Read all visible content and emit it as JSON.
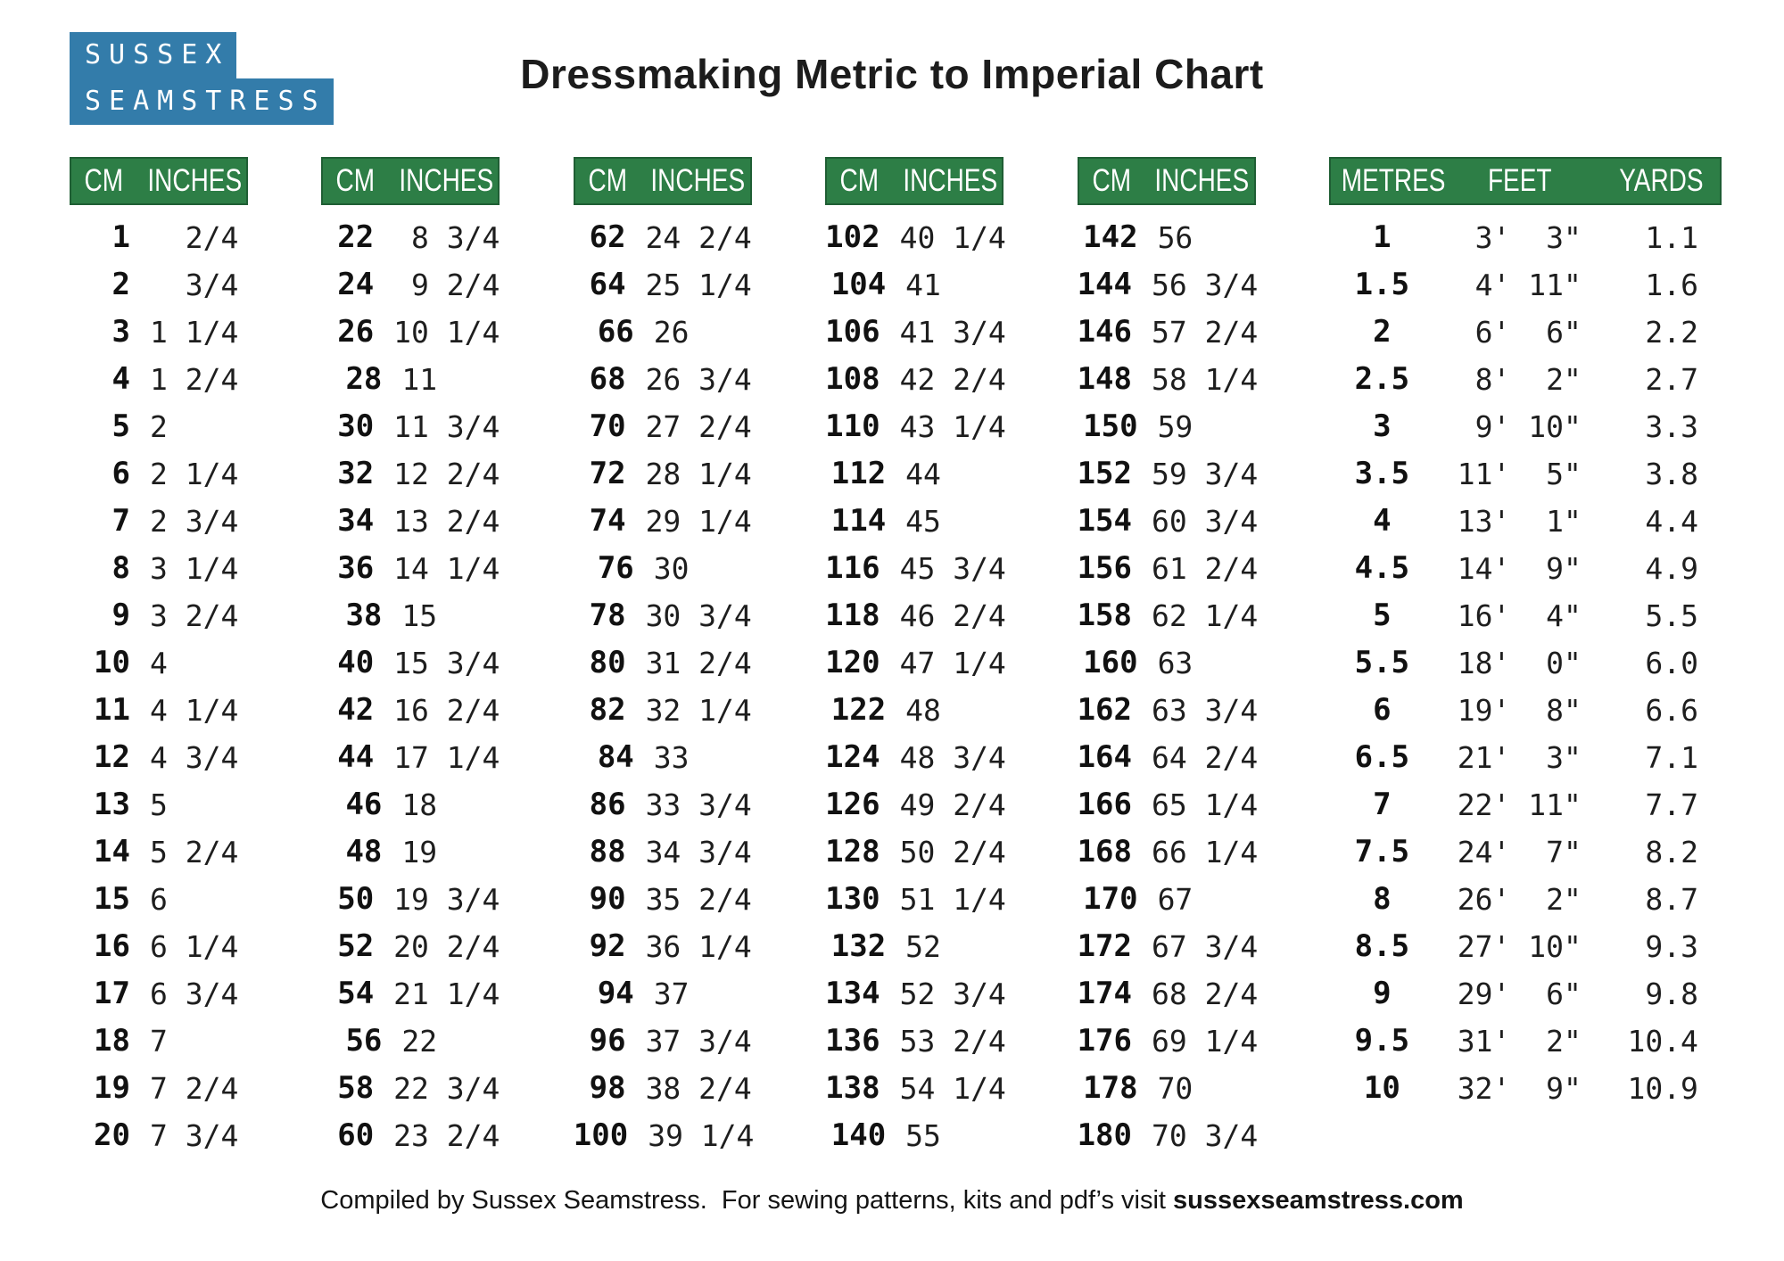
{
  "title": "Dressmaking Metric to Imperial Chart",
  "logo": {
    "line1": "SUSSEX",
    "line2": "SEAMSTRESS"
  },
  "colors": {
    "header_green": "#2d7e46",
    "header_green_border": "#1f5e34",
    "logo_blue": "#337caa"
  },
  "cm_header": {
    "cm": "CM",
    "inches": "INCHES"
  },
  "metres_header": {
    "metres": "METRES",
    "feet": "FEET",
    "yards": "YARDS"
  },
  "cm_tables": [
    {
      "rows": [
        [
          "1",
          "  2/4"
        ],
        [
          "2",
          "  3/4"
        ],
        [
          "3",
          "1 1/4"
        ],
        [
          "4",
          "1 2/4"
        ],
        [
          "5",
          "2"
        ],
        [
          "6",
          "2 1/4"
        ],
        [
          "7",
          "2 3/4"
        ],
        [
          "8",
          "3 1/4"
        ],
        [
          "9",
          "3 2/4"
        ],
        [
          "10",
          "4"
        ],
        [
          "11",
          "4 1/4"
        ],
        [
          "12",
          "4 3/4"
        ],
        [
          "13",
          "5"
        ],
        [
          "14",
          "5 2/4"
        ],
        [
          "15",
          "6"
        ],
        [
          "16",
          "6 1/4"
        ],
        [
          "17",
          "6 3/4"
        ],
        [
          "18",
          "7"
        ],
        [
          "19",
          "7 2/4"
        ],
        [
          "20",
          "7 3/4"
        ]
      ]
    },
    {
      "rows": [
        [
          "22",
          " 8 3/4"
        ],
        [
          "24",
          " 9 2/4"
        ],
        [
          "26",
          "10 1/4"
        ],
        [
          "28",
          "11"
        ],
        [
          "30",
          "11 3/4"
        ],
        [
          "32",
          "12 2/4"
        ],
        [
          "34",
          "13 2/4"
        ],
        [
          "36",
          "14 1/4"
        ],
        [
          "38",
          "15"
        ],
        [
          "40",
          "15 3/4"
        ],
        [
          "42",
          "16 2/4"
        ],
        [
          "44",
          "17 1/4"
        ],
        [
          "46",
          "18"
        ],
        [
          "48",
          "19"
        ],
        [
          "50",
          "19 3/4"
        ],
        [
          "52",
          "20 2/4"
        ],
        [
          "54",
          "21 1/4"
        ],
        [
          "56",
          "22"
        ],
        [
          "58",
          "22 3/4"
        ],
        [
          "60",
          "23 2/4"
        ]
      ]
    },
    {
      "rows": [
        [
          "62",
          "24 2/4"
        ],
        [
          "64",
          "25 1/4"
        ],
        [
          "66",
          "26"
        ],
        [
          "68",
          "26 3/4"
        ],
        [
          "70",
          "27 2/4"
        ],
        [
          "72",
          "28 1/4"
        ],
        [
          "74",
          "29 1/4"
        ],
        [
          "76",
          "30"
        ],
        [
          "78",
          "30 3/4"
        ],
        [
          "80",
          "31 2/4"
        ],
        [
          "82",
          "32 1/4"
        ],
        [
          "84",
          "33"
        ],
        [
          "86",
          "33 3/4"
        ],
        [
          "88",
          "34 3/4"
        ],
        [
          "90",
          "35 2/4"
        ],
        [
          "92",
          "36 1/4"
        ],
        [
          "94",
          "37"
        ],
        [
          "96",
          "37 3/4"
        ],
        [
          "98",
          "38 2/4"
        ],
        [
          "100",
          "39 1/4"
        ]
      ]
    },
    {
      "rows": [
        [
          "102",
          "40 1/4"
        ],
        [
          "104",
          "41"
        ],
        [
          "106",
          "41 3/4"
        ],
        [
          "108",
          "42 2/4"
        ],
        [
          "110",
          "43 1/4"
        ],
        [
          "112",
          "44"
        ],
        [
          "114",
          "45"
        ],
        [
          "116",
          "45 3/4"
        ],
        [
          "118",
          "46 2/4"
        ],
        [
          "120",
          "47 1/4"
        ],
        [
          "122",
          "48"
        ],
        [
          "124",
          "48 3/4"
        ],
        [
          "126",
          "49 2/4"
        ],
        [
          "128",
          "50 2/4"
        ],
        [
          "130",
          "51 1/4"
        ],
        [
          "132",
          "52"
        ],
        [
          "134",
          "52 3/4"
        ],
        [
          "136",
          "53 2/4"
        ],
        [
          "138",
          "54 1/4"
        ],
        [
          "140",
          "55"
        ]
      ]
    },
    {
      "rows": [
        [
          "142",
          "56"
        ],
        [
          "144",
          "56 3/4"
        ],
        [
          "146",
          "57 2/4"
        ],
        [
          "148",
          "58 1/4"
        ],
        [
          "150",
          "59"
        ],
        [
          "152",
          "59 3/4"
        ],
        [
          "154",
          "60 3/4"
        ],
        [
          "156",
          "61 2/4"
        ],
        [
          "158",
          "62 1/4"
        ],
        [
          "160",
          "63"
        ],
        [
          "162",
          "63 3/4"
        ],
        [
          "164",
          "64 2/4"
        ],
        [
          "166",
          "65 1/4"
        ],
        [
          "168",
          "66 1/4"
        ],
        [
          "170",
          "67"
        ],
        [
          "172",
          "67 3/4"
        ],
        [
          "174",
          "68 2/4"
        ],
        [
          "176",
          "69 1/4"
        ],
        [
          "178",
          "70"
        ],
        [
          "180",
          "70 3/4"
        ]
      ]
    }
  ],
  "metres_table": {
    "rows": [
      [
        "1",
        " 3'  3\"",
        "1.1"
      ],
      [
        "1.5",
        " 4' 11\"",
        "1.6"
      ],
      [
        "2",
        " 6'  6\"",
        "2.2"
      ],
      [
        "2.5",
        " 8'  2\"",
        "2.7"
      ],
      [
        "3",
        " 9' 10\"",
        "3.3"
      ],
      [
        "3.5",
        "11'  5\"",
        "3.8"
      ],
      [
        "4",
        "13'  1\"",
        "4.4"
      ],
      [
        "4.5",
        "14'  9\"",
        "4.9"
      ],
      [
        "5",
        "16'  4\"",
        "5.5"
      ],
      [
        "5.5",
        "18'  0\"",
        "6.0"
      ],
      [
        "6",
        "19'  8\"",
        "6.6"
      ],
      [
        "6.5",
        "21'  3\"",
        "7.1"
      ],
      [
        "7",
        "22' 11\"",
        "7.7"
      ],
      [
        "7.5",
        "24'  7\"",
        "8.2"
      ],
      [
        "8",
        "26'  2\"",
        "8.7"
      ],
      [
        "8.5",
        "27' 10\"",
        "9.3"
      ],
      [
        "9",
        "29'  6\"",
        "9.8"
      ],
      [
        "9.5",
        "31'  2\"",
        "10.4"
      ],
      [
        "10",
        "32'  9\"",
        "10.9"
      ]
    ]
  },
  "footer": {
    "prefix": "Compiled by Sussex Seamstress.  For sewing patterns, kits and pdf’s visit ",
    "site": "sussexseamstress.com"
  }
}
